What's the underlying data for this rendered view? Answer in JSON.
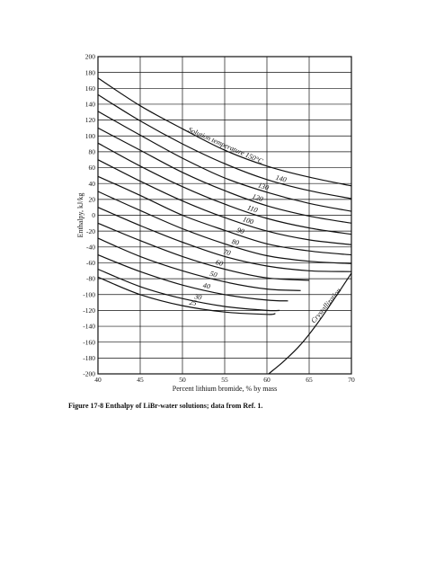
{
  "caption": "Figure 17-8  Enthalpy of LiBr-water solutions; data from Ref. 1.",
  "chart_data": {
    "type": "line",
    "title": "",
    "xlabel": "Percent lithium bromide, % by mass",
    "ylabel": "Enthalpy, kJ/kg",
    "xlim": [
      40,
      70
    ],
    "ylim": [
      -200,
      200
    ],
    "x_ticks": [
      "40",
      "45",
      "50",
      "55",
      "60",
      "65",
      "70"
    ],
    "y_ticks": [
      "200",
      "180",
      "160",
      "140",
      "120",
      "100",
      "80",
      "60",
      "40",
      "20",
      "0",
      "-20",
      "-40",
      "-60",
      "-80",
      "-100",
      "-120",
      "-140",
      "-160",
      "-180",
      "-200"
    ],
    "grid": true,
    "series": [
      {
        "name": "Solution temperature 150°C",
        "x": [
          40,
          45,
          50,
          55,
          60,
          65,
          70
        ],
        "y": [
          173,
          138,
          109,
          82,
          62,
          48,
          37
        ]
      },
      {
        "name": "140",
        "x": [
          40,
          45,
          50,
          55,
          60,
          65,
          70
        ],
        "y": [
          152,
          119,
          90,
          65,
          45,
          31,
          21
        ]
      },
      {
        "name": "130",
        "x": [
          40,
          45,
          50,
          55,
          60,
          65,
          70
        ],
        "y": [
          131,
          101,
          72,
          47,
          29,
          15,
          5
        ]
      },
      {
        "name": "120",
        "x": [
          40,
          45,
          50,
          55,
          60,
          65,
          70
        ],
        "y": [
          110,
          82,
          54,
          31,
          12,
          -1,
          -10
        ]
      },
      {
        "name": "110",
        "x": [
          40,
          45,
          50,
          55,
          60,
          65,
          70
        ],
        "y": [
          91,
          62,
          36,
          14,
          -4,
          -16,
          -24
        ]
      },
      {
        "name": "100",
        "x": [
          40,
          45,
          50,
          55,
          60,
          65,
          70
        ],
        "y": [
          70,
          43,
          18,
          -3,
          -20,
          -31,
          -37
        ]
      },
      {
        "name": "90",
        "x": [
          40,
          45,
          50,
          55,
          60,
          65,
          70
        ],
        "y": [
          49,
          25,
          0,
          -19,
          -36,
          -45,
          -50
        ]
      },
      {
        "name": "80",
        "x": [
          40,
          45,
          50,
          55,
          60,
          65,
          70
        ],
        "y": [
          30,
          6,
          -17,
          -36,
          -51,
          -58,
          -61
        ]
      },
      {
        "name": "70",
        "x": [
          40,
          45,
          50,
          55,
          60,
          65,
          70
        ],
        "y": [
          10,
          -13,
          -34,
          -52,
          -64,
          -70,
          -71
        ]
      },
      {
        "name": "60",
        "x": [
          40,
          45,
          50,
          55,
          60,
          65
        ],
        "y": [
          -10,
          -32,
          -52,
          -68,
          -79,
          -82
        ]
      },
      {
        "name": "50",
        "x": [
          40,
          45,
          50,
          55,
          60,
          64
        ],
        "y": [
          -29,
          -52,
          -70,
          -84,
          -93,
          -95
        ]
      },
      {
        "name": "40",
        "x": [
          40,
          45,
          50,
          55,
          60,
          62.5
        ],
        "y": [
          -50,
          -71,
          -88,
          -100,
          -107,
          -108
        ]
      },
      {
        "name": "30",
        "x": [
          40,
          45,
          50,
          55,
          60,
          61.5
        ],
        "y": [
          -68,
          -90,
          -105,
          -115,
          -120,
          -120
        ]
      },
      {
        "name": "25",
        "x": [
          40,
          45,
          50,
          55,
          60,
          61
        ],
        "y": [
          -78,
          -100,
          -114,
          -122,
          -125,
          -124
        ]
      },
      {
        "name": "Crystallization",
        "x": [
          60.2,
          62,
          64,
          66,
          68,
          70
        ],
        "y": [
          -200,
          -184,
          -163,
          -136,
          -105,
          -73
        ]
      }
    ]
  }
}
